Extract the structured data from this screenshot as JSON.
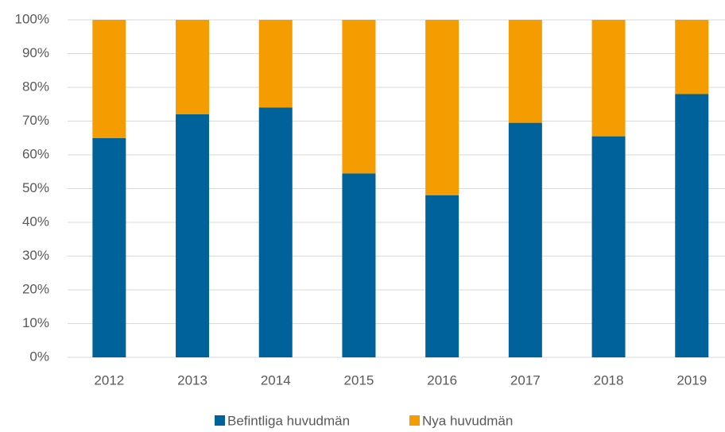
{
  "chart_data": {
    "type": "stacked_bar",
    "categories": [
      "2012",
      "2013",
      "2014",
      "2015",
      "2016",
      "2017",
      "2018",
      "2019"
    ],
    "series": [
      {
        "name": "Befintliga huvudmän",
        "color": "#00629b",
        "values": [
          65,
          72,
          74,
          54.5,
          48,
          69.5,
          65.5,
          78
        ]
      },
      {
        "name": "Nya huvudmän",
        "color": "#f59c00",
        "values": [
          35,
          28,
          26,
          45.5,
          52,
          30.5,
          34.5,
          22
        ]
      }
    ],
    "ylim": [
      0,
      100
    ],
    "yticks": [
      {
        "value": 0,
        "label": "0%"
      },
      {
        "value": 10,
        "label": "10%"
      },
      {
        "value": 20,
        "label": "20%"
      },
      {
        "value": 30,
        "label": "30%"
      },
      {
        "value": 40,
        "label": "40%"
      },
      {
        "value": 50,
        "label": "50%"
      },
      {
        "value": 60,
        "label": "60%"
      },
      {
        "value": 70,
        "label": "70%"
      },
      {
        "value": 80,
        "label": "80%"
      },
      {
        "value": 90,
        "label": "90%"
      },
      {
        "value": 100,
        "label": "100%"
      }
    ],
    "grid": true,
    "legend": "bottom"
  }
}
